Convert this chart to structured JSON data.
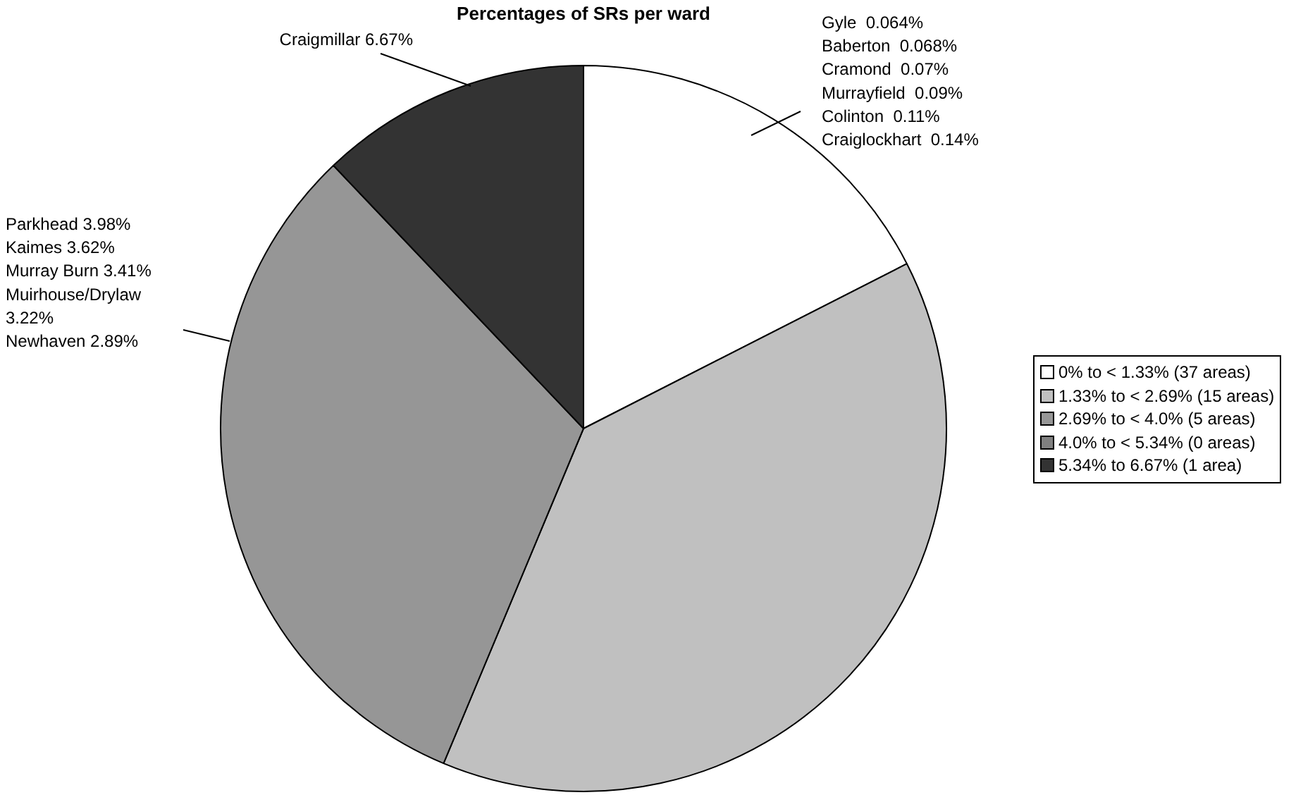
{
  "chart_data": {
    "type": "pie",
    "title": "Percentages of SRs per ward",
    "categories": [
      "0% to < 1.33% (37 areas)",
      "1.33% to < 2.69% (15 areas)",
      "2.69% to < 4.0% (5 areas)",
      "4.0% to < 5.34% (0 areas)",
      "5.34% to 6.67% (1 area)"
    ],
    "values": [
      17.5,
      38.8,
      31.6,
      0,
      12.1
    ],
    "colors": [
      "#ffffff",
      "#c0c0c0",
      "#969696",
      "#808080",
      "#333333"
    ],
    "legend": "right",
    "annotations": [
      "Gyle  0.064%\nBaberton  0.068%\nCramond  0.07%\nMurrayfield  0.09%\nColinton  0.11%\nCraiglockhart  0.14%",
      "Parkhead 3.98%\nKaimes 3.62%\nMurray Burn 3.41%\nMuirhouse/Drylaw\n3.22%\nNewhaven 2.89%",
      "Craigmillar 6.67%"
    ]
  }
}
